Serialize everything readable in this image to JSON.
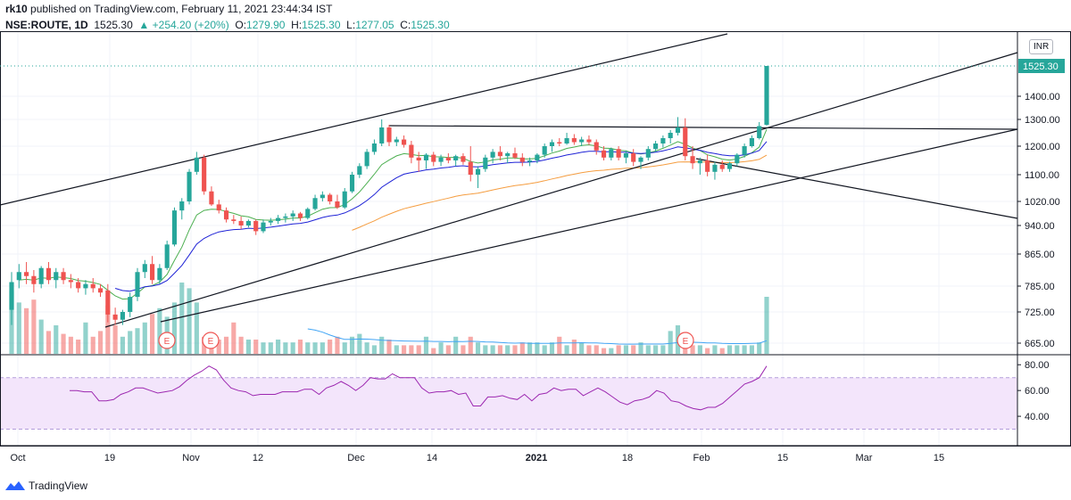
{
  "header": {
    "author": "rk10",
    "published": "published on TradingView.com, February 11, 2021 23:44:34 IST"
  },
  "legend": {
    "symbol": "NSE:ROUTE, 1D",
    "last": "1525.30",
    "change": "▲ +254.20 (+20%)",
    "o_label": "O:",
    "o_value": "1279.90",
    "h_label": "H:",
    "h_value": "1525.30",
    "l_label": "L:",
    "l_value": "1277.05",
    "c_label": "C:",
    "c_value": "1525.30"
  },
  "currency": "INR",
  "footer": {
    "brand": "TradingView"
  },
  "colors": {
    "up": "#26a69a",
    "down": "#ef5350",
    "ema_short": "#4caf50",
    "ema_mid": "#1e22d6",
    "ema_long": "#f59d40",
    "vol_ma": "#42a5f5",
    "rsi": "#9c27b0",
    "rsi_band": "#f3e5fb"
  },
  "chart_data": [
    {
      "type": "candlestick",
      "x_ticks": [
        "Oct",
        "19",
        "Nov",
        "12",
        "Dec",
        "14",
        "2021",
        "18",
        "Feb",
        "15",
        "Mar",
        "15"
      ],
      "y_ticks": [
        "665.00",
        "725.00",
        "785.00",
        "865.00",
        "940.00",
        "1020.00",
        "1100.00",
        "1200.00",
        "1300.00",
        "1400.00"
      ],
      "price_label": "1525.30",
      "ylim": [
        640,
        1700
      ],
      "series": [
        {
          "o": 730,
          "h": 820,
          "l": 700,
          "c": 795
        },
        {
          "o": 800,
          "h": 840,
          "l": 780,
          "c": 820
        },
        {
          "o": 820,
          "h": 845,
          "l": 790,
          "c": 810
        },
        {
          "o": 810,
          "h": 825,
          "l": 770,
          "c": 790
        },
        {
          "o": 790,
          "h": 835,
          "l": 780,
          "c": 830
        },
        {
          "o": 830,
          "h": 845,
          "l": 790,
          "c": 800
        },
        {
          "o": 800,
          "h": 830,
          "l": 780,
          "c": 820
        },
        {
          "o": 820,
          "h": 830,
          "l": 790,
          "c": 800
        },
        {
          "o": 800,
          "h": 815,
          "l": 780,
          "c": 795
        },
        {
          "o": 795,
          "h": 805,
          "l": 770,
          "c": 780
        },
        {
          "o": 780,
          "h": 800,
          "l": 765,
          "c": 790
        },
        {
          "o": 790,
          "h": 805,
          "l": 770,
          "c": 780
        },
        {
          "o": 780,
          "h": 790,
          "l": 760,
          "c": 770
        },
        {
          "o": 775,
          "h": 790,
          "l": 705,
          "c": 720
        },
        {
          "o": 720,
          "h": 735,
          "l": 700,
          "c": 710
        },
        {
          "o": 710,
          "h": 730,
          "l": 700,
          "c": 725
        },
        {
          "o": 725,
          "h": 770,
          "l": 715,
          "c": 760
        },
        {
          "o": 760,
          "h": 830,
          "l": 750,
          "c": 820
        },
        {
          "o": 820,
          "h": 850,
          "l": 805,
          "c": 840
        },
        {
          "o": 840,
          "h": 860,
          "l": 790,
          "c": 800
        },
        {
          "o": 800,
          "h": 840,
          "l": 790,
          "c": 830
        },
        {
          "o": 830,
          "h": 900,
          "l": 825,
          "c": 890
        },
        {
          "o": 890,
          "h": 1000,
          "l": 885,
          "c": 990
        },
        {
          "o": 990,
          "h": 1030,
          "l": 960,
          "c": 1020
        },
        {
          "o": 1020,
          "h": 1120,
          "l": 1010,
          "c": 1110
        },
        {
          "o": 1110,
          "h": 1180,
          "l": 1100,
          "c": 1160
        },
        {
          "o": 1160,
          "h": 1170,
          "l": 1040,
          "c": 1050
        },
        {
          "o": 1050,
          "h": 1065,
          "l": 1005,
          "c": 1010
        },
        {
          "o": 1010,
          "h": 1025,
          "l": 980,
          "c": 990
        },
        {
          "o": 990,
          "h": 1000,
          "l": 950,
          "c": 960
        },
        {
          "o": 960,
          "h": 975,
          "l": 945,
          "c": 955
        },
        {
          "o": 955,
          "h": 970,
          "l": 930,
          "c": 940
        },
        {
          "o": 940,
          "h": 960,
          "l": 935,
          "c": 955
        },
        {
          "o": 955,
          "h": 960,
          "l": 915,
          "c": 925
        },
        {
          "o": 925,
          "h": 960,
          "l": 920,
          "c": 950
        },
        {
          "o": 950,
          "h": 965,
          "l": 940,
          "c": 955
        },
        {
          "o": 955,
          "h": 975,
          "l": 945,
          "c": 965
        },
        {
          "o": 965,
          "h": 980,
          "l": 950,
          "c": 970
        },
        {
          "o": 970,
          "h": 990,
          "l": 955,
          "c": 980
        },
        {
          "o": 980,
          "h": 985,
          "l": 955,
          "c": 965
        },
        {
          "o": 965,
          "h": 1000,
          "l": 960,
          "c": 995
        },
        {
          "o": 995,
          "h": 1040,
          "l": 990,
          "c": 1030
        },
        {
          "o": 1030,
          "h": 1050,
          "l": 1020,
          "c": 1040
        },
        {
          "o": 1040,
          "h": 1045,
          "l": 1010,
          "c": 1020
        },
        {
          "o": 1020,
          "h": 1040,
          "l": 995,
          "c": 1000
        },
        {
          "o": 1000,
          "h": 1060,
          "l": 995,
          "c": 1050
        },
        {
          "o": 1050,
          "h": 1110,
          "l": 1045,
          "c": 1100
        },
        {
          "o": 1100,
          "h": 1140,
          "l": 1090,
          "c": 1130
        },
        {
          "o": 1130,
          "h": 1190,
          "l": 1120,
          "c": 1180
        },
        {
          "o": 1180,
          "h": 1225,
          "l": 1170,
          "c": 1210
        },
        {
          "o": 1210,
          "h": 1300,
          "l": 1200,
          "c": 1270
        },
        {
          "o": 1270,
          "h": 1280,
          "l": 1200,
          "c": 1215
        },
        {
          "o": 1215,
          "h": 1235,
          "l": 1200,
          "c": 1225
        },
        {
          "o": 1225,
          "h": 1240,
          "l": 1195,
          "c": 1205
        },
        {
          "o": 1205,
          "h": 1220,
          "l": 1140,
          "c": 1160
        },
        {
          "o": 1160,
          "h": 1180,
          "l": 1110,
          "c": 1150
        },
        {
          "o": 1150,
          "h": 1175,
          "l": 1120,
          "c": 1170
        },
        {
          "o": 1170,
          "h": 1180,
          "l": 1130,
          "c": 1145
        },
        {
          "o": 1145,
          "h": 1170,
          "l": 1130,
          "c": 1160
        },
        {
          "o": 1160,
          "h": 1175,
          "l": 1140,
          "c": 1150
        },
        {
          "o": 1150,
          "h": 1170,
          "l": 1130,
          "c": 1165
        },
        {
          "o": 1165,
          "h": 1175,
          "l": 1135,
          "c": 1145
        },
        {
          "o": 1145,
          "h": 1200,
          "l": 1080,
          "c": 1100
        },
        {
          "o": 1100,
          "h": 1130,
          "l": 1060,
          "c": 1120
        },
        {
          "o": 1120,
          "h": 1170,
          "l": 1110,
          "c": 1160
        },
        {
          "o": 1160,
          "h": 1190,
          "l": 1140,
          "c": 1180
        },
        {
          "o": 1180,
          "h": 1200,
          "l": 1150,
          "c": 1165
        },
        {
          "o": 1165,
          "h": 1180,
          "l": 1140,
          "c": 1175
        },
        {
          "o": 1175,
          "h": 1195,
          "l": 1155,
          "c": 1160
        },
        {
          "o": 1160,
          "h": 1175,
          "l": 1130,
          "c": 1145
        },
        {
          "o": 1145,
          "h": 1160,
          "l": 1130,
          "c": 1150
        },
        {
          "o": 1150,
          "h": 1175,
          "l": 1140,
          "c": 1170
        },
        {
          "o": 1170,
          "h": 1210,
          "l": 1160,
          "c": 1200
        },
        {
          "o": 1200,
          "h": 1225,
          "l": 1180,
          "c": 1215
        },
        {
          "o": 1215,
          "h": 1230,
          "l": 1200,
          "c": 1210
        },
        {
          "o": 1210,
          "h": 1250,
          "l": 1205,
          "c": 1230
        },
        {
          "o": 1230,
          "h": 1245,
          "l": 1205,
          "c": 1215
        },
        {
          "o": 1215,
          "h": 1235,
          "l": 1200,
          "c": 1225
        },
        {
          "o": 1225,
          "h": 1240,
          "l": 1205,
          "c": 1215
        },
        {
          "o": 1215,
          "h": 1225,
          "l": 1170,
          "c": 1185
        },
        {
          "o": 1185,
          "h": 1200,
          "l": 1150,
          "c": 1160
        },
        {
          "o": 1160,
          "h": 1195,
          "l": 1150,
          "c": 1190
        },
        {
          "o": 1190,
          "h": 1200,
          "l": 1150,
          "c": 1160
        },
        {
          "o": 1160,
          "h": 1185,
          "l": 1140,
          "c": 1175
        },
        {
          "o": 1175,
          "h": 1190,
          "l": 1130,
          "c": 1145
        },
        {
          "o": 1145,
          "h": 1165,
          "l": 1120,
          "c": 1160
        },
        {
          "o": 1160,
          "h": 1200,
          "l": 1150,
          "c": 1190
        },
        {
          "o": 1190,
          "h": 1220,
          "l": 1180,
          "c": 1210
        },
        {
          "o": 1210,
          "h": 1240,
          "l": 1195,
          "c": 1230
        },
        {
          "o": 1230,
          "h": 1260,
          "l": 1210,
          "c": 1250
        },
        {
          "o": 1250,
          "h": 1310,
          "l": 1240,
          "c": 1270
        },
        {
          "o": 1270,
          "h": 1305,
          "l": 1150,
          "c": 1165
        },
        {
          "o": 1165,
          "h": 1200,
          "l": 1120,
          "c": 1140
        },
        {
          "o": 1140,
          "h": 1160,
          "l": 1100,
          "c": 1150
        },
        {
          "o": 1150,
          "h": 1170,
          "l": 1095,
          "c": 1110
        },
        {
          "o": 1110,
          "h": 1145,
          "l": 1085,
          "c": 1135
        },
        {
          "o": 1135,
          "h": 1150,
          "l": 1110,
          "c": 1120
        },
        {
          "o": 1120,
          "h": 1145,
          "l": 1110,
          "c": 1140
        },
        {
          "o": 1140,
          "h": 1175,
          "l": 1130,
          "c": 1170
        },
        {
          "o": 1170,
          "h": 1210,
          "l": 1160,
          "c": 1200
        },
        {
          "o": 1200,
          "h": 1240,
          "l": 1195,
          "c": 1230
        },
        {
          "o": 1230,
          "h": 1290,
          "l": 1225,
          "c": 1275
        },
        {
          "o": 1279.9,
          "h": 1525.3,
          "l": 1277.05,
          "c": 1525.3
        }
      ],
      "volume": [
        1.1,
        0.9,
        0.8,
        0.95,
        0.6,
        0.4,
        0.5,
        0.35,
        0.3,
        0.25,
        0.55,
        0.3,
        0.4,
        0.85,
        0.5,
        0.3,
        0.4,
        0.45,
        0.55,
        0.7,
        0.8,
        0.65,
        0.9,
        1.25,
        1.15,
        0.9,
        0.3,
        0.2,
        0.25,
        0.3,
        0.55,
        0.3,
        0.25,
        0.25,
        0.2,
        0.2,
        0.25,
        0.2,
        0.2,
        0.25,
        0.2,
        0.2,
        0.2,
        0.25,
        0.3,
        0.2,
        0.3,
        0.35,
        0.2,
        0.15,
        0.3,
        0.25,
        0.15,
        0.15,
        0.15,
        0.15,
        0.3,
        0.1,
        0.2,
        0.15,
        0.3,
        0.15,
        0.3,
        0.2,
        0.15,
        0.15,
        0.15,
        0.15,
        0.15,
        0.2,
        0.2,
        0.2,
        0.15,
        0.2,
        0.3,
        0.15,
        0.25,
        0.2,
        0.15,
        0.15,
        0.1,
        0.1,
        0.15,
        0.15,
        0.15,
        0.2,
        0.15,
        0.15,
        0.15,
        0.4,
        0.5,
        0.3,
        0.15,
        0.15,
        0.1,
        0.15,
        0.1,
        0.15,
        0.15,
        0.15,
        0.15,
        0.2,
        1.0
      ],
      "events": [
        "E",
        "E",
        "E"
      ],
      "annotation_lines": "channel, triangle, moving averages"
    },
    {
      "type": "line",
      "name": "RSI",
      "y_ticks": [
        "80.00",
        "60.00",
        "40.00"
      ],
      "ylim": [
        20,
        85
      ],
      "band": [
        30,
        70
      ],
      "values": [
        60,
        60,
        59,
        59,
        52,
        52,
        53,
        57,
        59,
        62,
        62,
        60,
        58,
        59,
        60,
        63,
        68,
        72,
        75,
        79,
        76,
        68,
        62,
        60,
        59,
        56,
        57,
        57,
        57,
        59,
        59,
        59,
        61,
        61,
        57,
        62,
        64,
        67,
        64,
        60,
        64,
        70,
        69,
        69,
        73,
        70,
        70,
        70,
        62,
        58,
        59,
        59,
        60,
        57,
        58,
        48,
        48,
        55,
        55,
        56,
        54,
        53,
        57,
        52,
        57,
        58,
        62,
        60,
        61,
        61,
        56,
        59,
        62,
        59,
        55,
        51,
        49,
        52,
        53,
        55,
        60,
        58,
        52,
        51,
        48,
        46,
        45,
        47,
        47,
        50,
        55,
        60,
        65,
        67,
        70,
        79
      ]
    }
  ]
}
